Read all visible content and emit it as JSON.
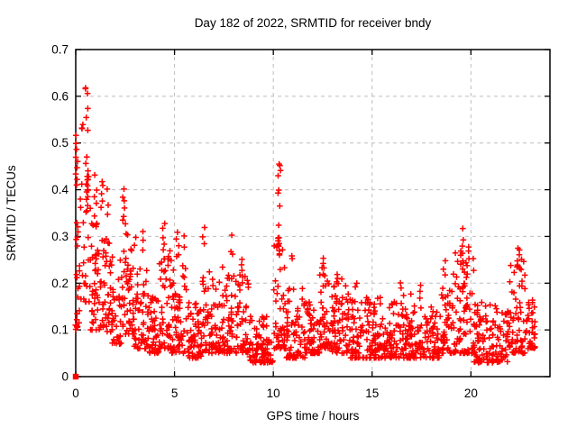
{
  "figure": {
    "background": "#ffffff",
    "text_color": "#000000",
    "border_color": "#000000"
  },
  "chart_data": {
    "type": "scatter",
    "title": "Day 182 of 2022, SRMTID for receiver bndy",
    "xlabel": "GPS time / hours",
    "ylabel": "SRMTID / TECUs",
    "xlim": [
      0,
      24
    ],
    "ylim": [
      0,
      0.7
    ],
    "xticks": [
      0,
      5,
      10,
      15,
      20
    ],
    "xtick_labels": [
      "0",
      "5",
      "10",
      "15",
      "20"
    ],
    "yticks": [
      0,
      0.1,
      0.2,
      0.3,
      0.4,
      0.5,
      0.6,
      0.7
    ],
    "ytick_labels": [
      "0",
      "0.1",
      "0.2",
      "0.3",
      "0.4",
      "0.5",
      "0.6",
      "0.7"
    ],
    "grid": {
      "show": true,
      "style": "dashed",
      "color": "#bdbdbd",
      "dash": "4,4"
    },
    "marker": {
      "shape": "plus",
      "color": "#ff0000",
      "size": 6.6,
      "stroke_width": 1.5
    },
    "legend": null,
    "data_x_end": 23.25,
    "origin_cluster": {
      "x": 0,
      "y": 0,
      "note": "dense overlapping points forming a filled square at origin"
    },
    "scatter_detail": {
      "x_jitter": 0.14,
      "y_jitter": 0.006,
      "seed": 7,
      "skew": 1.9
    },
    "spike_columns": [
      {
        "x": 0.05,
        "ys": [
          0.515,
          0.5,
          0.487,
          0.47,
          0.462,
          0.447,
          0.432,
          0.42,
          0.41,
          0.33,
          0.31,
          0.3,
          0.22,
          0.21,
          0.19,
          0.112,
          0.108
        ]
      },
      {
        "x": 0.3,
        "ys": [
          0.54,
          0.535,
          0.53,
          0.41,
          0.38,
          0.36
        ]
      },
      {
        "x": 0.55,
        "ys": [
          0.62,
          0.615,
          0.605,
          0.575,
          0.555,
          0.53,
          0.47,
          0.455,
          0.44,
          0.43,
          0.41,
          0.395,
          0.38,
          0.365,
          0.35
        ]
      },
      {
        "x": 1.0,
        "ys": [
          0.43,
          0.4,
          0.385,
          0.37,
          0.345,
          0.32
        ]
      },
      {
        "x": 1.35,
        "ys": [
          0.415,
          0.41,
          0.39,
          0.375,
          0.36
        ]
      },
      {
        "x": 1.6,
        "ys": [
          0.4,
          0.37,
          0.35
        ]
      },
      {
        "x": 2.45,
        "ys": [
          0.4,
          0.385,
          0.375,
          0.36,
          0.345,
          0.335,
          0.325
        ]
      },
      {
        "x": 3.0,
        "ys": [
          0.3,
          0.28
        ]
      },
      {
        "x": 3.45,
        "ys": [
          0.31,
          0.29,
          0.27
        ]
      },
      {
        "x": 4.45,
        "ys": [
          0.33,
          0.32,
          0.3,
          0.285,
          0.27
        ]
      },
      {
        "x": 5.15,
        "ys": [
          0.31,
          0.295,
          0.28,
          0.26
        ]
      },
      {
        "x": 5.5,
        "ys": [
          0.3,
          0.28
        ]
      },
      {
        "x": 6.45,
        "ys": [
          0.32,
          0.3,
          0.285
        ]
      },
      {
        "x": 7.9,
        "ys": [
          0.305,
          0.27,
          0.26
        ]
      },
      {
        "x": 8.35,
        "ys": [
          0.25,
          0.24,
          0.23,
          0.22
        ]
      },
      {
        "x": 10.3,
        "ys": [
          0.455,
          0.45,
          0.44,
          0.43,
          0.4,
          0.39,
          0.365,
          0.325,
          0.3,
          0.295,
          0.29,
          0.285,
          0.28,
          0.27,
          0.26
        ]
      },
      {
        "x": 10.9,
        "ys": [
          0.26,
          0.25
        ]
      },
      {
        "x": 12.5,
        "ys": [
          0.253,
          0.245,
          0.235,
          0.23,
          0.22
        ]
      },
      {
        "x": 13.25,
        "ys": [
          0.22,
          0.21,
          0.2
        ]
      },
      {
        "x": 14.2,
        "ys": [
          0.2,
          0.19
        ]
      },
      {
        "x": 16.5,
        "ys": [
          0.2,
          0.19
        ]
      },
      {
        "x": 17.4,
        "ys": [
          0.195,
          0.185
        ]
      },
      {
        "x": 18.65,
        "ys": [
          0.25,
          0.23,
          0.22
        ]
      },
      {
        "x": 19.55,
        "ys": [
          0.315,
          0.29,
          0.28,
          0.27,
          0.265,
          0.26,
          0.25,
          0.24,
          0.23
        ]
      },
      {
        "x": 19.85,
        "ys": [
          0.28,
          0.27,
          0.25,
          0.24
        ]
      },
      {
        "x": 22.4,
        "ys": [
          0.275,
          0.27,
          0.26,
          0.25,
          0.24,
          0.235
        ]
      },
      {
        "x": 22.6,
        "ys": [
          0.25,
          0.245,
          0.23
        ]
      }
    ],
    "baseline_bands": [
      {
        "x0": 0.0,
        "x1": 0.35,
        "n": 16,
        "y_min": 0.1,
        "y_max": 0.33
      },
      {
        "x0": 0.35,
        "x1": 0.75,
        "n": 26,
        "y_min": 0.16,
        "y_max": 0.44
      },
      {
        "x0": 0.75,
        "x1": 1.2,
        "n": 38,
        "y_min": 0.1,
        "y_max": 0.33
      },
      {
        "x0": 1.2,
        "x1": 1.8,
        "n": 42,
        "y_min": 0.09,
        "y_max": 0.3
      },
      {
        "x0": 1.8,
        "x1": 2.3,
        "n": 36,
        "y_min": 0.07,
        "y_max": 0.26
      },
      {
        "x0": 2.3,
        "x1": 2.9,
        "n": 48,
        "y_min": 0.09,
        "y_max": 0.33
      },
      {
        "x0": 2.9,
        "x1": 3.6,
        "n": 52,
        "y_min": 0.06,
        "y_max": 0.24
      },
      {
        "x0": 3.6,
        "x1": 4.2,
        "n": 46,
        "y_min": 0.05,
        "y_max": 0.18
      },
      {
        "x0": 4.2,
        "x1": 4.8,
        "n": 50,
        "y_min": 0.06,
        "y_max": 0.27
      },
      {
        "x0": 4.8,
        "x1": 5.6,
        "n": 62,
        "y_min": 0.05,
        "y_max": 0.26
      },
      {
        "x0": 5.6,
        "x1": 6.4,
        "n": 60,
        "y_min": 0.04,
        "y_max": 0.16
      },
      {
        "x0": 6.4,
        "x1": 7.3,
        "n": 66,
        "y_min": 0.05,
        "y_max": 0.23
      },
      {
        "x0": 7.3,
        "x1": 8.1,
        "n": 60,
        "y_min": 0.05,
        "y_max": 0.24
      },
      {
        "x0": 8.1,
        "x1": 8.8,
        "n": 54,
        "y_min": 0.05,
        "y_max": 0.22
      },
      {
        "x0": 8.8,
        "x1": 10.0,
        "n": 88,
        "y_min": 0.03,
        "y_max": 0.13
      },
      {
        "x0": 10.0,
        "x1": 10.65,
        "n": 46,
        "y_min": 0.06,
        "y_max": 0.28
      },
      {
        "x0": 10.65,
        "x1": 11.6,
        "n": 70,
        "y_min": 0.04,
        "y_max": 0.19
      },
      {
        "x0": 11.6,
        "x1": 12.35,
        "n": 58,
        "y_min": 0.05,
        "y_max": 0.16
      },
      {
        "x0": 12.35,
        "x1": 12.85,
        "n": 40,
        "y_min": 0.06,
        "y_max": 0.22
      },
      {
        "x0": 12.85,
        "x1": 13.9,
        "n": 78,
        "y_min": 0.05,
        "y_max": 0.21
      },
      {
        "x0": 13.9,
        "x1": 15.1,
        "n": 88,
        "y_min": 0.04,
        "y_max": 0.17
      },
      {
        "x0": 15.1,
        "x1": 16.3,
        "n": 88,
        "y_min": 0.04,
        "y_max": 0.17
      },
      {
        "x0": 16.3,
        "x1": 17.6,
        "n": 95,
        "y_min": 0.04,
        "y_max": 0.18
      },
      {
        "x0": 17.6,
        "x1": 18.4,
        "n": 58,
        "y_min": 0.04,
        "y_max": 0.15
      },
      {
        "x0": 18.4,
        "x1": 19.0,
        "n": 44,
        "y_min": 0.05,
        "y_max": 0.2
      },
      {
        "x0": 19.0,
        "x1": 20.15,
        "n": 85,
        "y_min": 0.05,
        "y_max": 0.27
      },
      {
        "x0": 20.15,
        "x1": 21.9,
        "n": 125,
        "y_min": 0.03,
        "y_max": 0.16
      },
      {
        "x0": 21.9,
        "x1": 22.75,
        "n": 62,
        "y_min": 0.05,
        "y_max": 0.24
      },
      {
        "x0": 22.75,
        "x1": 23.25,
        "n": 40,
        "y_min": 0.06,
        "y_max": 0.17
      }
    ]
  }
}
